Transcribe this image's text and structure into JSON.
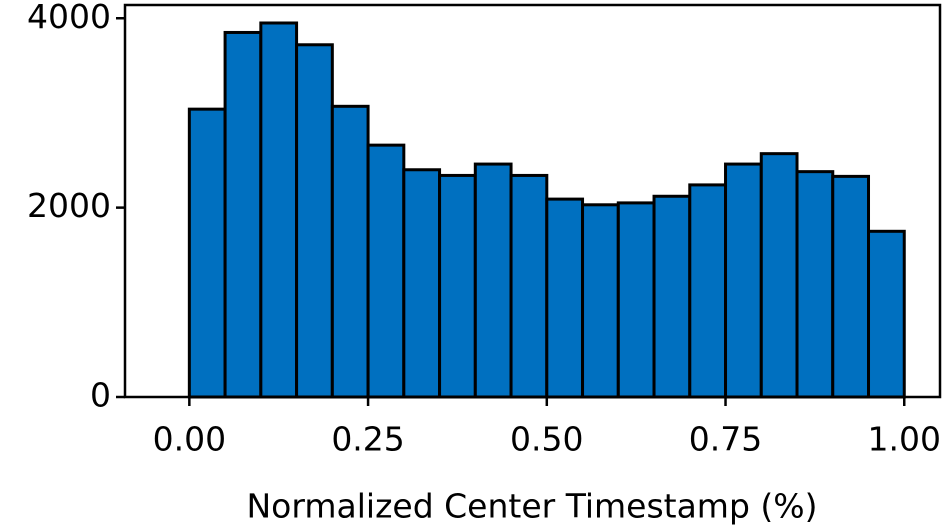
{
  "chart_data": {
    "type": "histogram",
    "x_label": "Normalized Center Timestamp (%)",
    "bins": [
      0,
      0.05,
      0.1,
      0.15,
      0.2,
      0.25,
      0.3,
      0.35,
      0.4,
      0.45,
      0.5,
      0.55,
      0.6,
      0.65,
      0.7,
      0.75,
      0.8,
      0.85,
      0.9,
      0.95,
      1.0
    ],
    "values": [
      3040,
      3850,
      3950,
      3720,
      3070,
      2660,
      2400,
      2340,
      2460,
      2340,
      2090,
      2030,
      2050,
      2120,
      2240,
      2460,
      2570,
      2380,
      2330,
      1750
    ],
    "color": "#0070c0",
    "edge_color": "#000000",
    "xlim": [
      -0.09,
      1.05
    ],
    "ylim": [
      0,
      4140
    ],
    "xticks": [
      {
        "value": 0,
        "label": "0.00"
      },
      {
        "value": 0.25,
        "label": "0.25"
      },
      {
        "value": 0.5,
        "label": "0.50"
      },
      {
        "value": 0.75,
        "label": "0.75"
      },
      {
        "value": 1.0,
        "label": "1.00"
      }
    ],
    "yticks": [
      0,
      2000,
      4000
    ]
  }
}
